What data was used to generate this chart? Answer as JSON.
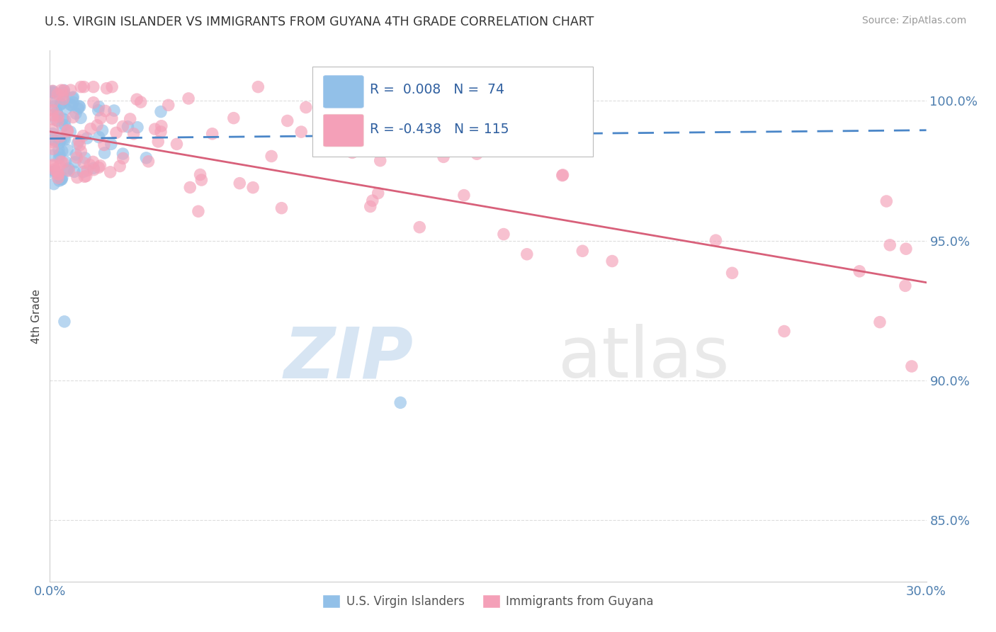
{
  "title": "U.S. VIRGIN ISLANDER VS IMMIGRANTS FROM GUYANA 4TH GRADE CORRELATION CHART",
  "source": "Source: ZipAtlas.com",
  "ylabel": "4th Grade",
  "xlim": [
    0.0,
    0.3
  ],
  "ylim": [
    0.828,
    1.018
  ],
  "blue_R": 0.008,
  "blue_N": 74,
  "pink_R": -0.438,
  "pink_N": 115,
  "blue_color": "#92C0E8",
  "pink_color": "#F4A0B8",
  "blue_trend_color": "#4A86C8",
  "pink_trend_color": "#D8607A",
  "legend_label_blue": "U.S. Virgin Islanders",
  "legend_label_pink": "Immigrants from Guyana",
  "background_color": "#FFFFFF",
  "ytick_vals": [
    0.85,
    0.9,
    0.95,
    1.0
  ],
  "ytick_labels": [
    "85.0%",
    "90.0%",
    "95.0%",
    "100.0%"
  ],
  "grid_color": "#DDDDDD",
  "axis_color": "#CCCCCC",
  "tick_color": "#5080B0",
  "title_color": "#333333",
  "source_color": "#999999",
  "legend_text_color": "#3060A0",
  "watermark_zip_color": "#BDD4EC",
  "watermark_atlas_color": "#D8D8D8"
}
